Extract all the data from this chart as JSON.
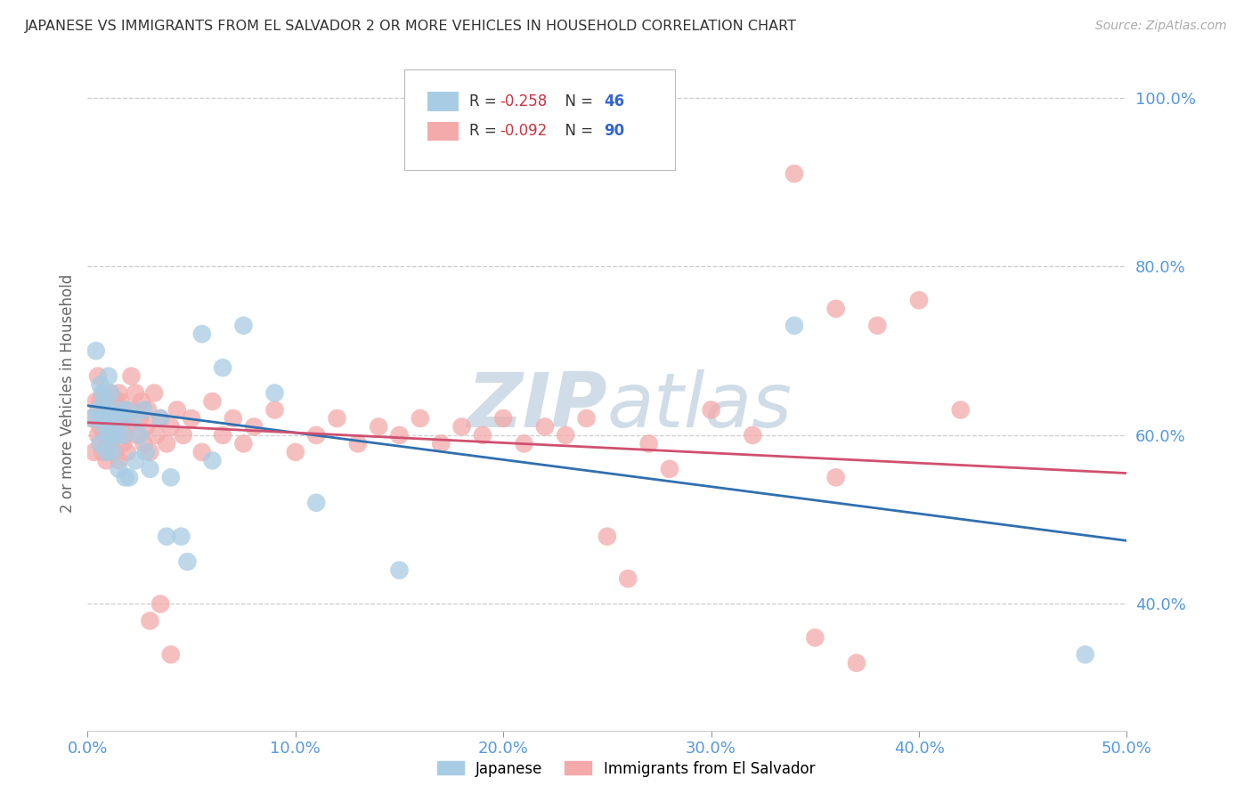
{
  "title": "JAPANESE VS IMMIGRANTS FROM EL SALVADOR 2 OR MORE VEHICLES IN HOUSEHOLD CORRELATION CHART",
  "source": "Source: ZipAtlas.com",
  "ylabel": "2 or more Vehicles in Household",
  "xmin": 0.0,
  "xmax": 0.5,
  "ymin": 0.25,
  "ymax": 1.05,
  "xticks": [
    0.0,
    0.1,
    0.2,
    0.3,
    0.4,
    0.5
  ],
  "yticks": [
    0.4,
    0.6,
    0.8,
    1.0
  ],
  "ytick_labels": [
    "40.0%",
    "60.0%",
    "80.0%",
    "100.0%"
  ],
  "xtick_labels": [
    "0.0%",
    "10.0%",
    "20.0%",
    "30.0%",
    "40.0%",
    "50.0%"
  ],
  "japanese_R": -0.258,
  "japanese_N": 46,
  "salvador_R": -0.092,
  "salvador_N": 90,
  "japanese_color": "#a8cce4",
  "salvador_color": "#f4aaaa",
  "japanese_line_color": "#3070b0",
  "salvador_line_color": "#d05070",
  "background_color": "#ffffff",
  "grid_color": "#cccccc",
  "axis_label_color": "#5599dd",
  "watermark_color": "#d0dde8",
  "legend_r1_label": "R = ",
  "legend_r1_val": "-0.258",
  "legend_n1_label": "  N = ",
  "legend_n1_val": "46",
  "legend_r2_val": "-0.092",
  "legend_n2_val": "90",
  "japanese_x": [
    0.002,
    0.004,
    0.005,
    0.006,
    0.006,
    0.007,
    0.007,
    0.008,
    0.008,
    0.009,
    0.009,
    0.01,
    0.01,
    0.011,
    0.011,
    0.012,
    0.012,
    0.013,
    0.014,
    0.015,
    0.015,
    0.016,
    0.017,
    0.018,
    0.019,
    0.02,
    0.022,
    0.023,
    0.025,
    0.027,
    0.028,
    0.03,
    0.035,
    0.038,
    0.04,
    0.045,
    0.048,
    0.055,
    0.06,
    0.065,
    0.075,
    0.09,
    0.11,
    0.15,
    0.34,
    0.48
  ],
  "japanese_y": [
    0.62,
    0.7,
    0.63,
    0.66,
    0.59,
    0.62,
    0.65,
    0.61,
    0.64,
    0.58,
    0.63,
    0.6,
    0.67,
    0.62,
    0.65,
    0.6,
    0.58,
    0.62,
    0.6,
    0.63,
    0.56,
    0.62,
    0.6,
    0.55,
    0.63,
    0.55,
    0.62,
    0.57,
    0.6,
    0.63,
    0.58,
    0.56,
    0.62,
    0.48,
    0.55,
    0.48,
    0.45,
    0.72,
    0.57,
    0.68,
    0.73,
    0.65,
    0.52,
    0.44,
    0.73,
    0.34
  ],
  "salvador_x": [
    0.002,
    0.003,
    0.004,
    0.005,
    0.005,
    0.006,
    0.006,
    0.007,
    0.007,
    0.008,
    0.008,
    0.009,
    0.009,
    0.01,
    0.01,
    0.011,
    0.011,
    0.012,
    0.012,
    0.013,
    0.013,
    0.014,
    0.014,
    0.015,
    0.015,
    0.016,
    0.016,
    0.017,
    0.017,
    0.018,
    0.018,
    0.019,
    0.02,
    0.021,
    0.022,
    0.023,
    0.024,
    0.025,
    0.026,
    0.027,
    0.028,
    0.029,
    0.03,
    0.032,
    0.033,
    0.035,
    0.038,
    0.04,
    0.043,
    0.046,
    0.05,
    0.055,
    0.06,
    0.065,
    0.07,
    0.075,
    0.08,
    0.09,
    0.1,
    0.11,
    0.12,
    0.13,
    0.14,
    0.15,
    0.16,
    0.17,
    0.18,
    0.19,
    0.2,
    0.21,
    0.22,
    0.23,
    0.24,
    0.25,
    0.26,
    0.27,
    0.28,
    0.3,
    0.32,
    0.34,
    0.36,
    0.38,
    0.4,
    0.42,
    0.03,
    0.035,
    0.04,
    0.35,
    0.36,
    0.37
  ],
  "salvador_y": [
    0.62,
    0.58,
    0.64,
    0.6,
    0.67,
    0.61,
    0.64,
    0.58,
    0.63,
    0.6,
    0.65,
    0.57,
    0.62,
    0.63,
    0.59,
    0.61,
    0.65,
    0.6,
    0.62,
    0.58,
    0.64,
    0.6,
    0.63,
    0.57,
    0.65,
    0.61,
    0.64,
    0.59,
    0.62,
    0.6,
    0.63,
    0.58,
    0.61,
    0.67,
    0.63,
    0.65,
    0.6,
    0.62,
    0.64,
    0.59,
    0.61,
    0.63,
    0.58,
    0.65,
    0.6,
    0.62,
    0.59,
    0.61,
    0.63,
    0.6,
    0.62,
    0.58,
    0.64,
    0.6,
    0.62,
    0.59,
    0.61,
    0.63,
    0.58,
    0.6,
    0.62,
    0.59,
    0.61,
    0.6,
    0.62,
    0.59,
    0.61,
    0.6,
    0.62,
    0.59,
    0.61,
    0.6,
    0.62,
    0.48,
    0.43,
    0.59,
    0.56,
    0.63,
    0.6,
    0.91,
    0.75,
    0.73,
    0.76,
    0.63,
    0.38,
    0.4,
    0.34,
    0.36,
    0.55,
    0.33
  ],
  "line_jap_x0": 0.0,
  "line_jap_y0": 0.635,
  "line_jap_x1": 0.5,
  "line_jap_y1": 0.475,
  "line_sal_x0": 0.0,
  "line_sal_y0": 0.615,
  "line_sal_x1": 0.5,
  "line_sal_y1": 0.555
}
